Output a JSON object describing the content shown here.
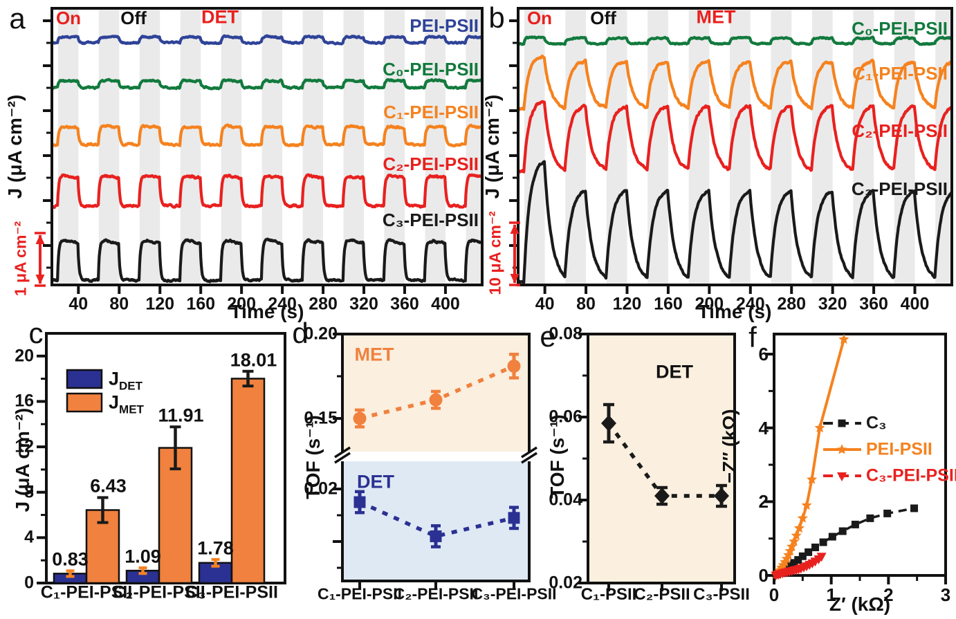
{
  "panels": {
    "a": {
      "letter": "a",
      "on": "On",
      "off": "Off",
      "mode": "DET",
      "ylabel": "J (μA cm⁻²)",
      "xlabel": "Time (s)",
      "scalebar": "1 μA cm⁻²"
    },
    "b": {
      "letter": "b",
      "on": "On",
      "off": "Off",
      "mode": "MET",
      "ylabel": "J (μA cm⁻²)",
      "xlabel": "Time (s)",
      "scalebar": "10 μA cm⁻²"
    },
    "c": {
      "letter": "c",
      "ylabel": "J (μA cm⁻²)",
      "legend": [
        {
          "base": "J",
          "sub": "DET"
        },
        {
          "base": "J",
          "sub": "MET"
        }
      ]
    },
    "d": {
      "letter": "d",
      "ylabel": "TOF (s⁻¹)",
      "met": "MET",
      "det": "DET"
    },
    "e": {
      "letter": "e",
      "ylabel": "TOF (s⁻¹)",
      "det": "DET"
    },
    "f": {
      "letter": "f",
      "xlabel": "Z′ (kΩ)",
      "ylabel": "−Z″ (kΩ)"
    }
  },
  "chart_data": [
    {
      "id": "a",
      "type": "line",
      "mode": "DET",
      "xlabel": "Time (s)",
      "ylabel": "J (μA cm⁻²)",
      "xticks": [
        40,
        80,
        120,
        160,
        200,
        240,
        280,
        320,
        360,
        400
      ],
      "x_range": [
        14,
        436
      ],
      "light_cycle_s": {
        "on": 20,
        "off": 20
      },
      "scale_bar": "1 μA cm⁻²",
      "traces": [
        {
          "label": "PEI-PSII",
          "color": "#2F4398",
          "approx_amplitude_uA": 0.11
        },
        {
          "label": "C₀-PEI-PSII",
          "color": "#127A3D",
          "approx_amplitude_uA": 0.14
        },
        {
          "label": "C₁-PEI-PSII",
          "color": "#F5821F",
          "approx_amplitude_uA": 0.35
        },
        {
          "label": "C₂-PEI-PSII",
          "color": "#E8211F",
          "approx_amplitude_uA": 0.58
        },
        {
          "label": "C₃-PEI-PSII",
          "color": "#1A1A1A",
          "approx_amplitude_uA": 0.76
        }
      ]
    },
    {
      "id": "b",
      "type": "line",
      "mode": "MET",
      "xlabel": "Time (s)",
      "ylabel": "J (μA cm⁻²)",
      "xticks": [
        40,
        80,
        120,
        160,
        200,
        240,
        280,
        320,
        360,
        400
      ],
      "x_range": [
        14,
        436
      ],
      "light_cycle_s": {
        "on": 20,
        "off": 20
      },
      "scale_bar": "10 μA cm⁻²",
      "traces": [
        {
          "label": "C₀-PEI-PSII",
          "color": "#127A3D",
          "approx_amplitude_uA": 0.9
        },
        {
          "label": "C₁-PEI-PSII",
          "color": "#F5821F",
          "approx_amplitude_uA": 7.5
        },
        {
          "label": "C₂-PEI-PSII",
          "color": "#E8211F",
          "approx_amplitude_uA": 10.2
        },
        {
          "label": "C₃-PEI-PSII",
          "color": "#1A1A1A",
          "approx_amplitude_uA": 14.5
        }
      ]
    },
    {
      "id": "c",
      "type": "bar",
      "ylabel": "J (μA cm⁻²)",
      "ylim": [
        0,
        22
      ],
      "yticks": [
        0,
        4,
        8,
        12,
        16,
        20
      ],
      "categories": [
        "C₁-PEI-PSII",
        "C₂-PEI-PSII",
        "C₃-PEI-PSII"
      ],
      "series": [
        {
          "name": "J_DET",
          "color": "#2B3192",
          "values": [
            0.83,
            1.09,
            1.78
          ],
          "errors": [
            0.25,
            0.25,
            0.3
          ],
          "error_color": "#F5821F"
        },
        {
          "name": "J_MET",
          "color": "#F0813E",
          "values": [
            6.43,
            11.91,
            18.01
          ],
          "errors": [
            1.1,
            1.85,
            0.65
          ],
          "error_color": "#1A1A1A"
        }
      ],
      "value_labels": [
        "0.83",
        "1.09",
        "1.78",
        "6.43",
        "11.91",
        "18.01"
      ]
    },
    {
      "id": "d",
      "type": "scatter",
      "ylabel": "TOF (s⁻¹)",
      "broken_axis": true,
      "categories": [
        "C₁-PEI-PSII",
        "C₂-PEI-PSII",
        "C₃-PEI-PSII"
      ],
      "segments": [
        {
          "label": "MET",
          "color": "#F0813E",
          "bg": "#FBEFDF",
          "yticks": [
            0.2,
            0.15
          ],
          "y_range": [
            0.129,
            0.2
          ],
          "values": [
            0.15,
            0.161,
            0.181
          ],
          "errors": [
            0.005,
            0.005,
            0.007
          ],
          "marker": "circle"
        },
        {
          "label": "DET",
          "color": "#2B3192",
          "bg": "#DFE9F4",
          "yticks": [
            0.02
          ],
          "y_range": [
            0.0025,
            0.0255
          ],
          "values": [
            0.0175,
            0.011,
            0.0145
          ],
          "errors": [
            0.002,
            0.002,
            0.002
          ],
          "marker": "square"
        }
      ]
    },
    {
      "id": "e",
      "type": "scatter",
      "label": "DET",
      "bg": "#FBEFDF",
      "ylabel": "TOF (s⁻¹)",
      "ylim": [
        0.02,
        0.08
      ],
      "yticks": [
        0.08,
        0.06,
        0.04,
        0.02
      ],
      "categories": [
        "C₁-PSII",
        "C₂-PSII",
        "C₃-PSII"
      ],
      "values": [
        0.0585,
        0.041,
        0.041
      ],
      "errors": [
        0.0045,
        0.002,
        0.0025
      ],
      "color": "#1A1A1A",
      "marker": "diamond"
    },
    {
      "id": "f",
      "type": "line-scatter",
      "xlabel": "Z′ (kΩ)",
      "ylabel": "−Z″ (kΩ)",
      "xlim": [
        0,
        3
      ],
      "ylim": [
        0,
        6.7
      ],
      "xticks": [
        0,
        1,
        2,
        3
      ],
      "yticks": [
        0,
        2,
        4,
        6
      ],
      "series": [
        {
          "name": "C₃",
          "color": "#1A1A1A",
          "marker": "square",
          "line_style": "dashed",
          "x": [
            0.05,
            0.1,
            0.16,
            0.22,
            0.28,
            0.35,
            0.42,
            0.5,
            0.6,
            0.72,
            0.86,
            1.02,
            1.2,
            1.42,
            1.68,
            1.98,
            2.45
          ],
          "y": [
            0.03,
            0.08,
            0.14,
            0.2,
            0.27,
            0.34,
            0.42,
            0.52,
            0.63,
            0.76,
            0.9,
            1.05,
            1.2,
            1.38,
            1.55,
            1.68,
            1.82
          ]
        },
        {
          "name": "PEI-PSII",
          "color": "#F5821F",
          "marker": "star",
          "line_style": "solid",
          "x": [
            0.04,
            0.07,
            0.1,
            0.13,
            0.16,
            0.19,
            0.22,
            0.25,
            0.28,
            0.31,
            0.35,
            0.39,
            0.44,
            0.5,
            0.57,
            0.66,
            0.8,
            1.22
          ],
          "y": [
            0.03,
            0.08,
            0.14,
            0.21,
            0.28,
            0.36,
            0.45,
            0.55,
            0.66,
            0.78,
            0.92,
            1.08,
            1.28,
            1.55,
            1.9,
            2.6,
            4.0,
            6.4
          ]
        },
        {
          "name": "C₃-PEI-PSII",
          "color": "#E8211F",
          "marker": "triangle-down",
          "line_style": "dashed",
          "x": [
            0.03,
            0.07,
            0.11,
            0.15,
            0.19,
            0.23,
            0.27,
            0.31,
            0.35,
            0.39,
            0.43,
            0.47,
            0.52,
            0.57,
            0.62,
            0.67,
            0.72,
            0.78,
            0.83
          ],
          "y": [
            0.01,
            0.03,
            0.05,
            0.07,
            0.09,
            0.1,
            0.12,
            0.13,
            0.15,
            0.16,
            0.18,
            0.2,
            0.23,
            0.26,
            0.3,
            0.34,
            0.39,
            0.45,
            0.52
          ]
        }
      ]
    }
  ]
}
